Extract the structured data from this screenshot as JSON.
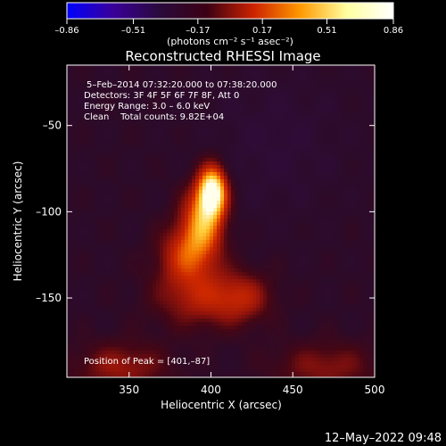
{
  "chart_data": {
    "type": "heatmap",
    "title": "Reconstructed RHESSI Image",
    "xlabel": "Heliocentric X (arcsec)",
    "ylabel": "Heliocentric Y (arcsec)",
    "xlim": [
      312,
      500
    ],
    "ylim": [
      -196,
      -15
    ],
    "x_ticks": [
      350,
      400,
      450,
      500
    ],
    "y_ticks": [
      -50,
      -100,
      -150
    ],
    "colorbar": {
      "ticks": [
        "-0.86",
        "-0.51",
        "-0.17",
        "0.17",
        "0.51",
        "0.86"
      ],
      "range": [
        -0.86,
        0.86
      ],
      "unit_label": "(photons cm⁻² s⁻¹ asec⁻²)",
      "colors": [
        "#0000ff",
        "#3a0098",
        "#2a0a3a",
        "#3c0015",
        "#cc2200",
        "#ff9900",
        "#ffffa0",
        "#ffffff"
      ]
    },
    "annotations": [
      "5–Feb–2014 07:32:20.000 to 07:38:20.000",
      "Detectors: 3F 4F 5F 6F 7F 8F, Att 0",
      "Energy Range: 3.0 – 6.0 keV",
      "Clean    Total counts: 9.82E+04"
    ],
    "peak_label": "Position of Peak = [401,–87]",
    "peak": {
      "x": 401,
      "y": -87
    },
    "sources": [
      {
        "x": 401,
        "y": -88,
        "value": 0.86,
        "sigma_x": 6,
        "sigma_y": 10
      },
      {
        "x": 395,
        "y": -105,
        "value": 0.55,
        "sigma_x": 9,
        "sigma_y": 14
      },
      {
        "x": 385,
        "y": -125,
        "value": 0.38,
        "sigma_x": 12,
        "sigma_y": 12
      },
      {
        "x": 395,
        "y": -150,
        "value": 0.3,
        "sigma_x": 20,
        "sigma_y": 12
      },
      {
        "x": 420,
        "y": -150,
        "value": 0.22,
        "sigma_x": 12,
        "sigma_y": 10
      },
      {
        "x": 345,
        "y": -190,
        "value": 0.25,
        "sigma_x": 20,
        "sigma_y": 10
      },
      {
        "x": 470,
        "y": -190,
        "value": 0.22,
        "sigma_x": 22,
        "sigma_y": 10
      }
    ]
  },
  "footer": {
    "timestamp": "12–May–2022 09:48"
  }
}
